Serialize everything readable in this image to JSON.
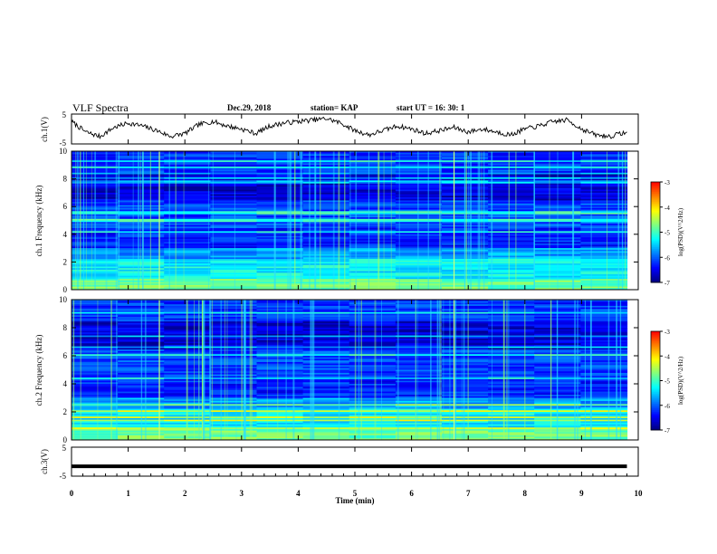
{
  "header": {
    "title": "VLF Spectra",
    "date": "Dec.29, 2018",
    "station": "station= KAP",
    "start": "start  UT =   16: 30: 1"
  },
  "colors": {
    "background": "#ffffff",
    "axes": "#000000",
    "trace": "#000000",
    "colormap": [
      "#00007f",
      "#0000ff",
      "#0080ff",
      "#00ffff",
      "#80ff80",
      "#ffff00",
      "#ff8000",
      "#ff0000",
      "#ffffff"
    ]
  },
  "chart_data": [
    {
      "type": "line",
      "panel": "ch1-waveform",
      "ylabel": "ch.1(V)",
      "ylim": [
        -5,
        5
      ],
      "yticks": [
        "5",
        "-5"
      ],
      "xlim": [
        0,
        10
      ],
      "series": [
        {
          "x": [
            0,
            0.25,
            0.5,
            0.75,
            1.0,
            1.25,
            1.5,
            1.75,
            2.0,
            2.25,
            2.5,
            2.75,
            3.0,
            3.25,
            3.5,
            3.75,
            4.0,
            4.25,
            4.5,
            4.75,
            5.0,
            5.25,
            5.5,
            5.75,
            6.0,
            6.25,
            6.5,
            6.75,
            7.0,
            7.25,
            7.5,
            7.75,
            8.0,
            8.25,
            8.5,
            8.75,
            9.0,
            9.25,
            9.5,
            9.8
          ],
          "values": [
            2.5,
            -1.0,
            -2.5,
            0.5,
            2.0,
            1.0,
            -0.5,
            -2.5,
            -1.5,
            1.5,
            2.5,
            1.0,
            0.0,
            -1.5,
            1.0,
            2.0,
            2.5,
            3.0,
            3.5,
            2.0,
            -0.5,
            -2.0,
            -0.5,
            1.0,
            0.0,
            -1.5,
            -0.5,
            0.5,
            -1.0,
            0.0,
            -1.0,
            -2.0,
            0.0,
            1.0,
            2.5,
            3.0,
            0.0,
            -2.0,
            -2.5,
            -1.0
          ]
        }
      ]
    },
    {
      "type": "heatmap",
      "panel": "ch1-spectrogram",
      "ylabel": "ch.1 Frequency (kHz)",
      "ylim": [
        0,
        10
      ],
      "yticks": [
        "0",
        "2",
        "4",
        "6",
        "8",
        "10"
      ],
      "xlim": [
        0,
        9.8
      ],
      "colorbar": {
        "label": "log(PSD)(V^2/Hz)",
        "range": [
          -7,
          -3
        ],
        "ticks": [
          "-3",
          "-4",
          "-5",
          "-6",
          "-7"
        ]
      },
      "segment_breaks_min": [
        1.55,
        6.75
      ]
    },
    {
      "type": "heatmap",
      "panel": "ch2-spectrogram",
      "ylabel": "ch.2 Frequency (kHz)",
      "ylim": [
        0,
        10
      ],
      "yticks": [
        "0",
        "2",
        "4",
        "6",
        "8",
        "10"
      ],
      "xlim": [
        0,
        9.8
      ],
      "colorbar": {
        "label": "log(PSD)(V^2/Hz)",
        "range": [
          -7,
          -3
        ],
        "ticks": [
          "-3",
          "-4",
          "-5",
          "-6",
          "-7"
        ]
      },
      "segment_breaks_min": [
        1.55,
        6.75
      ]
    },
    {
      "type": "line",
      "panel": "ch3-waveform",
      "ylabel": "ch.3(V)",
      "ylim": [
        -5,
        5
      ],
      "yticks": [
        "5",
        "-5"
      ],
      "xlim": [
        0,
        10
      ],
      "series": [
        {
          "x": [
            0,
            9.8
          ],
          "values": [
            -1.6,
            -1.6
          ]
        }
      ]
    }
  ],
  "xaxis": {
    "label": "Time  (min)",
    "ticks": [
      "0",
      "1",
      "2",
      "3",
      "4",
      "5",
      "6",
      "7",
      "8",
      "9",
      "10"
    ]
  }
}
